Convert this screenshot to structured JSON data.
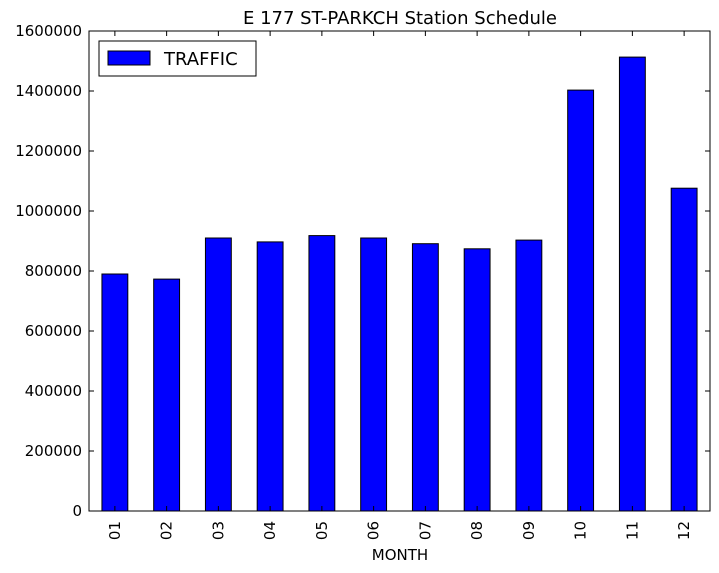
{
  "chart_data": {
    "type": "bar",
    "title": "E 177 ST-PARKCH Station Schedule",
    "xlabel": "MONTH",
    "ylabel": "",
    "categories": [
      "01",
      "02",
      "03",
      "04",
      "05",
      "06",
      "07",
      "08",
      "09",
      "10",
      "11",
      "12"
    ],
    "series": [
      {
        "name": "TRAFFIC",
        "color": "#0000ff",
        "values": [
          790000,
          773000,
          910000,
          897000,
          918000,
          910000,
          891000,
          874000,
          903000,
          1403000,
          1513000,
          1076000
        ]
      }
    ],
    "ylim": [
      0,
      1600000
    ],
    "yticks": [
      "0",
      "200000",
      "400000",
      "600000",
      "800000",
      "1000000",
      "1200000",
      "1400000",
      "1600000"
    ],
    "grid": false,
    "legend_position": "top-left"
  }
}
